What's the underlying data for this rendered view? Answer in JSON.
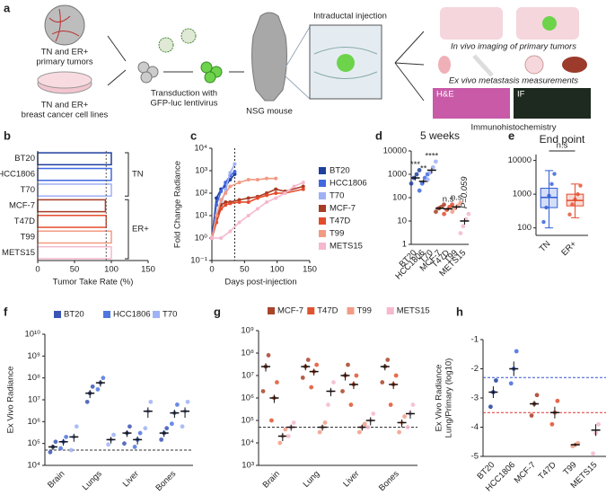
{
  "diagram": {
    "label": "a",
    "primary_tumors": [
      "TN and ER+",
      "primary tumors"
    ],
    "cell_lines": [
      "TN and ER+",
      "breast cancer cell lines"
    ],
    "transduction": [
      "Transduction with",
      "GFP-luc lentivirus"
    ],
    "mouse": "NSG mouse",
    "injection": "Intraductal injection",
    "imaging": "In vivo imaging of primary tumors",
    "metastasis": "Ex vivo metastasis measurements",
    "he": "H&E",
    "if": "IF",
    "ihc": "Immunohistochemistry"
  },
  "chart_data": [
    {
      "type": "hbar",
      "label": "b",
      "categories": [
        "BT20",
        "HCC1806",
        "T70",
        "MCF-7",
        "T47D",
        "T99",
        "METS15"
      ],
      "values": [
        100,
        100,
        100,
        92,
        93,
        100,
        100
      ],
      "colors": [
        "#1f3f9e",
        "#4169e1",
        "#9fb0f5",
        "#a83c24",
        "#e34b2b",
        "#f29a82",
        "#f5b8cf"
      ],
      "xlim": [
        0,
        150
      ],
      "xticks": [
        0,
        50,
        100,
        150
      ],
      "xlabel": "Tumor Take Rate (%)",
      "reference_x": 93,
      "groups": [
        {
          "name": "TN",
          "size": 3
        },
        {
          "name": "ER+",
          "size": 4
        }
      ]
    },
    {
      "type": "line",
      "label": "c",
      "log": true,
      "xlim": [
        0,
        150
      ],
      "xticks": [
        0,
        50,
        100,
        150
      ],
      "ylim": [
        0.1,
        10000
      ],
      "yticks": [
        {
          "value": 0.1,
          "label": "10⁻¹"
        },
        {
          "value": 1,
          "label": "10⁰"
        },
        {
          "value": 10,
          "label": "10¹"
        },
        {
          "value": 100,
          "label": "10²"
        },
        {
          "value": 1000,
          "label": "10³"
        },
        {
          "value": 10000,
          "label": "10⁴"
        }
      ],
      "ylabel": [
        "Fold Change Radiance"
      ],
      "xlabel": "Days post-injection",
      "vline": 35,
      "series": [
        {
          "name": "BT20",
          "color": "#1f3f9e",
          "x": [
            0,
            7,
            14,
            21,
            28,
            35
          ],
          "values": [
            1,
            60,
            150,
            200,
            400,
            700
          ]
        },
        {
          "name": "HCC1806",
          "color": "#4169e1",
          "x": [
            0,
            7,
            14,
            21,
            28,
            35
          ],
          "values": [
            1,
            30,
            120,
            300,
            600,
            900
          ]
        },
        {
          "name": "T70",
          "color": "#9fb0f5",
          "x": [
            0,
            7,
            14,
            21,
            28,
            35
          ],
          "values": [
            1,
            5,
            30,
            150,
            800,
            2000
          ]
        },
        {
          "name": "MCF-7",
          "color": "#a83c24",
          "x": [
            0,
            7,
            14,
            21,
            28,
            42,
            56,
            70,
            84,
            98,
            112,
            140
          ],
          "values": [
            1,
            8,
            30,
            40,
            40,
            50,
            60,
            70,
            100,
            150,
            120,
            200
          ]
        },
        {
          "name": "T47D",
          "color": "#e34b2b",
          "x": [
            0,
            7,
            14,
            21,
            28,
            42,
            56,
            70,
            84,
            98,
            112,
            140
          ],
          "values": [
            1,
            5,
            20,
            30,
            35,
            40,
            40,
            60,
            80,
            100,
            100,
            150
          ]
        },
        {
          "name": "T99",
          "color": "#f29a82",
          "x": [
            0,
            7,
            14,
            21,
            28,
            42,
            56,
            70,
            84,
            98
          ],
          "values": [
            1,
            10,
            50,
            100,
            200,
            300,
            400,
            400,
            450,
            450
          ]
        },
        {
          "name": "METS15",
          "color": "#f5b8cf",
          "x": [
            0,
            14,
            28,
            42,
            56,
            70,
            84,
            98,
            112,
            126,
            140
          ],
          "values": [
            1,
            1,
            2,
            5,
            10,
            20,
            40,
            60,
            100,
            200,
            300
          ]
        }
      ]
    },
    {
      "type": "dot",
      "label": "d",
      "title": "5 weeks",
      "log": true,
      "ylim": [
        1,
        10000
      ],
      "yticks": [
        1,
        10,
        100,
        1000,
        10000
      ],
      "categories": [
        "BT20",
        "HCC1806",
        "T70",
        "MCF-7",
        "T47D",
        "T99",
        "METS15"
      ],
      "colors": [
        "#1f3f9e",
        "#4169e1",
        "#9fb0f5",
        "#a83c24",
        "#e34b2b",
        "#f29a82",
        "#f5b8cf"
      ],
      "values": [
        700,
        500,
        1500,
        35,
        33,
        40,
        10
      ],
      "errors": [
        150,
        100,
        400,
        5,
        5,
        8,
        3
      ],
      "points": [
        [
          400,
          700,
          1000,
          1500
        ],
        [
          200,
          400,
          700,
          1000
        ],
        [
          600,
          1200,
          2000,
          3500
        ],
        [
          25,
          35,
          40,
          50
        ],
        [
          20,
          30,
          40,
          50
        ],
        [
          25,
          35,
          45,
          60
        ],
        [
          3,
          6,
          12,
          20
        ]
      ],
      "significance": [
        "***",
        "**",
        "****",
        null,
        "n.s",
        "n.s",
        "P=0.059"
      ]
    },
    {
      "type": "box",
      "label": "e",
      "title": "End point",
      "log": true,
      "ylim": [
        60,
        15000
      ],
      "yticks": [
        100,
        1000,
        10000
      ],
      "categories": [
        "TN",
        "ER+"
      ],
      "colors": [
        "#2d5bd8",
        "#e34b2b"
      ],
      "min": [
        100,
        200
      ],
      "q1": [
        400,
        450
      ],
      "median": [
        800,
        650
      ],
      "q3": [
        1500,
        1000
      ],
      "max": [
        5000,
        2000
      ],
      "points": [
        [
          150,
          400,
          900,
          2000,
          4000
        ],
        [
          250,
          500,
          700,
          1000,
          1800
        ]
      ],
      "annotation": "n.s"
    },
    {
      "type": "dot",
      "label": "f",
      "log": true,
      "ylim": [
        10000,
        10000000000
      ],
      "yticks": [
        {
          "value": 10000,
          "label": "10⁴"
        },
        {
          "value": 100000,
          "label": "10⁵"
        },
        {
          "value": 1000000,
          "label": "10⁶"
        },
        {
          "value": 10000000,
          "label": "10⁷"
        },
        {
          "value": 100000000,
          "label": "10⁸"
        },
        {
          "value": 1000000000,
          "label": "10⁹"
        },
        {
          "value": 10000000000,
          "label": "10¹⁰"
        }
      ],
      "ylabel": [
        "Ex Vivo Radiance"
      ],
      "categories": [
        "Brain",
        "Lungs",
        "Liver",
        "Bones"
      ],
      "references": [
        {
          "value": 50000,
          "color": "#333333"
        }
      ],
      "series": [
        {
          "name": "BT20",
          "color": "#3b55b5",
          "values": [
            70000.0,
            20000000.0,
            300000.0,
            300000.0
          ],
          "errors": [
            20000.0,
            8000000.0,
            100000.0,
            100000.0
          ],
          "points": [
            [
              40000.0,
              70000.0,
              120000.0
            ],
            [
              8000000.0,
              20000000.0,
              40000000.0
            ],
            [
              100000.0,
              300000.0,
              600000.0
            ],
            [
              150000.0,
              300000.0,
              500000.0
            ]
          ]
        },
        {
          "name": "HCC1806",
          "color": "#4f76e0",
          "values": [
            120000.0,
            60000000.0,
            150000.0,
            2500000.0
          ],
          "errors": [
            40000.0,
            20000000.0,
            60000.0,
            1000000.0
          ],
          "points": [
            [
              60000.0,
              120000.0,
              200000.0
            ],
            [
              30000000.0,
              60000000.0,
              100000000.0
            ],
            [
              70000.0,
              150000.0,
              300000.0
            ],
            [
              800000.0,
              2500000.0,
              6000000.0
            ]
          ]
        },
        {
          "name": "T70",
          "color": "#9fb2f5",
          "values": [
            200000.0,
            150000.0,
            3000000.0,
            3000000.0
          ],
          "errors": [
            80000.0,
            50000.0,
            1500000.0,
            1500000.0
          ],
          "points": [
            [
              50000.0,
              200000.0,
              600000.0
            ],
            [
              90000.0,
              150000.0,
              250000.0
            ],
            [
              500000.0,
              3000000.0,
              8000000.0
            ],
            [
              600000.0,
              3000000.0,
              8000000.0
            ]
          ]
        }
      ]
    },
    {
      "type": "dot",
      "label": "g",
      "log": true,
      "ylim": [
        1000,
        1000000000
      ],
      "yticks": [
        {
          "value": 1000,
          "label": "10³"
        },
        {
          "value": 10000,
          "label": "10⁴"
        },
        {
          "value": 100000,
          "label": "10⁵"
        },
        {
          "value": 1000000,
          "label": "10⁶"
        },
        {
          "value": 10000000,
          "label": "10⁷"
        },
        {
          "value": 100000000,
          "label": "10⁸"
        },
        {
          "value": 1000000000,
          "label": "10⁹"
        }
      ],
      "categories": [
        "Brain",
        "Lung",
        "Liver",
        "Bones"
      ],
      "references": [
        {
          "value": 50000,
          "color": "#333333"
        }
      ],
      "series": [
        {
          "name": "MCF-7",
          "color": "#a8442a",
          "values": [
            25000000.0,
            25000000.0,
            10000000.0,
            25000000.0
          ],
          "errors": [
            10000000.0,
            8000000.0,
            4000000.0,
            8000000.0
          ],
          "points": [
            [
              2000000.0,
              25000000.0,
              80000000.0
            ],
            [
              8000000.0,
              25000000.0,
              50000000.0
            ],
            [
              2000000.0,
              10000000.0,
              30000000.0
            ],
            [
              5000000.0,
              25000000.0,
              50000000.0
            ]
          ]
        },
        {
          "name": "T47D",
          "color": "#e0532f",
          "values": [
            1000000.0,
            15000000.0,
            4000000.0,
            4000000.0
          ],
          "errors": [
            400000.0,
            5000000.0,
            1500000.0,
            1500000.0
          ],
          "points": [
            [
              100000.0,
              1000000.0,
              5000000.0
            ],
            [
              3000000.0,
              15000000.0,
              30000000.0
            ],
            [
              500000.0,
              4000000.0,
              10000000.0
            ],
            [
              500000.0,
              4000000.0,
              10000000.0
            ]
          ]
        },
        {
          "name": "T99",
          "color": "#f29c86",
          "values": [
            20000.0,
            50000.0,
            50000.0,
            80000.0
          ],
          "errors": [
            8000.0,
            15000.0,
            15000.0,
            30000.0
          ],
          "points": [
            [
              10000.0,
              20000.0,
              40000.0
            ],
            [
              30000.0,
              50000.0,
              80000.0
            ],
            [
              30000.0,
              50000.0,
              70000.0
            ],
            [
              30000.0,
              80000.0,
              150000.0
            ]
          ]
        },
        {
          "name": "METS15",
          "color": "#f5b8cf",
          "values": [
            50000.0,
            2000000.0,
            100000.0,
            200000.0
          ],
          "errors": [
            15000.0,
            800000.0,
            40000.0,
            80000.0
          ],
          "points": [
            [
              20000.0,
              50000.0,
              80000.0
            ],
            [
              500000.0,
              2000000.0,
              5000000.0
            ],
            [
              50000.0,
              100000.0,
              200000.0
            ],
            [
              50000.0,
              200000.0,
              500000.0
            ]
          ]
        }
      ]
    },
    {
      "type": "dot",
      "label": "h",
      "log": false,
      "ylim": [
        -5,
        -1
      ],
      "yticks": [
        -1,
        -2,
        -3,
        -4,
        -5
      ],
      "ylabel": [
        "Ex Vivo Radiance",
        "Lung/Primary (log10)"
      ],
      "categories": [
        "BT20",
        "HCC1806",
        "MCF-7",
        "T47D",
        "T99",
        "METS15"
      ],
      "colors": [
        "#1f3f9e",
        "#4169e1",
        "#a83c24",
        "#e34b2b",
        "#f29a82",
        "#f5b8cf"
      ],
      "values": [
        -2.8,
        -2.0,
        -3.2,
        -3.5,
        -4.6,
        -4.1
      ],
      "errors": [
        0.2,
        0.25,
        0.1,
        0.2,
        0.05,
        0.2
      ],
      "points": [
        [
          -3.3,
          -2.8,
          -2.4
        ],
        [
          -2.5,
          -2.0,
          -1.4
        ],
        [
          -3.6,
          -3.2,
          -2.9
        ],
        [
          -3.9,
          -3.5,
          -3.1
        ],
        [
          -4.65,
          -4.6,
          -4.55
        ],
        [
          -4.9,
          -4.2,
          -3.9
        ]
      ],
      "references": [
        {
          "value": -2.3,
          "color": "#3355cc"
        },
        {
          "value": -3.5,
          "color": "#e03030"
        }
      ]
    }
  ]
}
